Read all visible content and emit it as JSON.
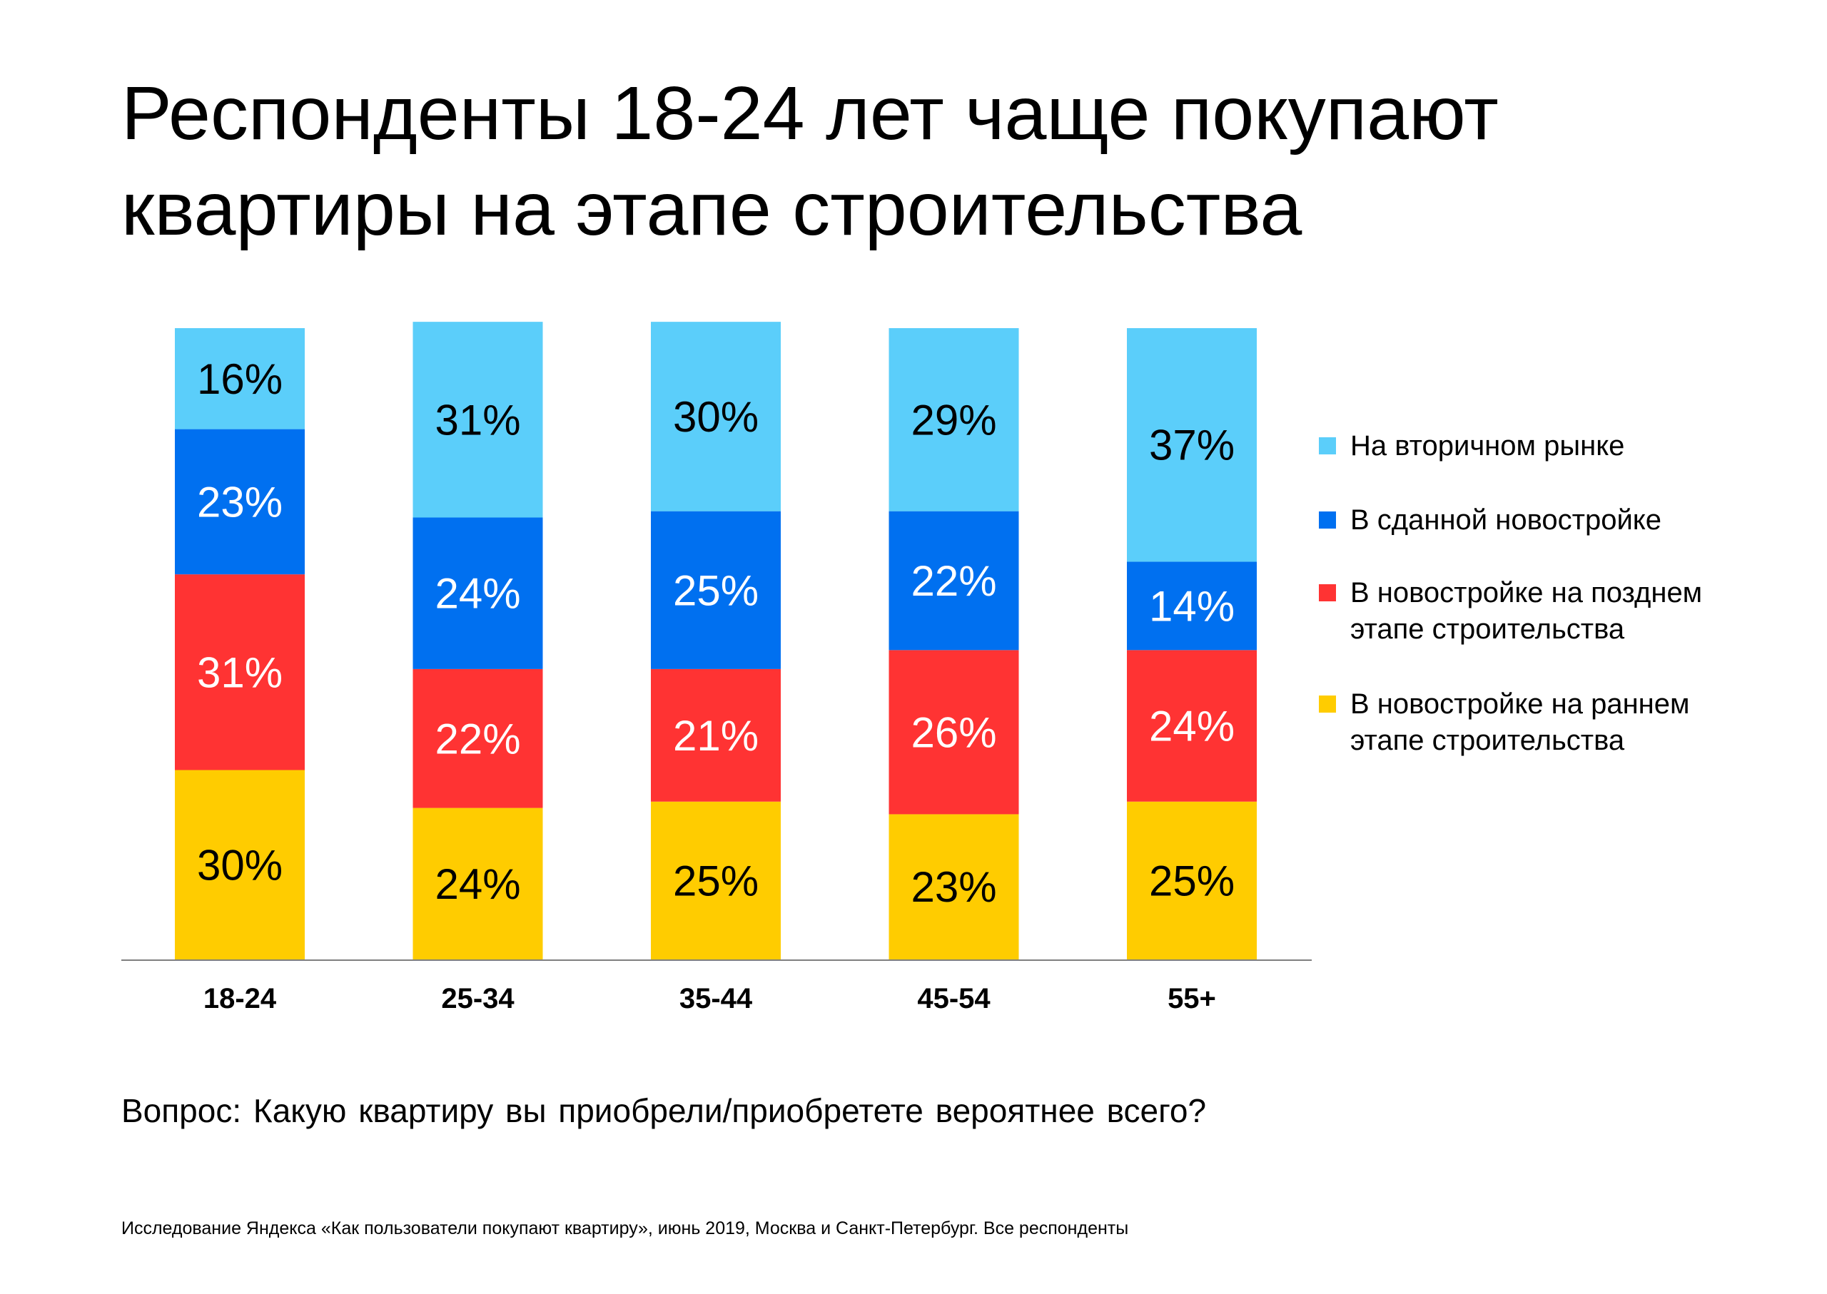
{
  "title_line1": "Респонденты 18-24 лет чаще покупают",
  "title_line2": "квартиры на этапе строительства",
  "question": "Вопрос: Какую квартиру вы приобрели/приобретете вероятнее всего?",
  "source": "Исследование Яндекса «Как пользователи покупают квартиру», июнь 2019, Москва и Санкт-Петербург. Все респонденты",
  "legend": [
    {
      "line1": "На вторичном рынке",
      "line2": "",
      "color": "#5BCEFA"
    },
    {
      "line1": "В сданной новостройке",
      "line2": "",
      "color": "#0070F0"
    },
    {
      "line1": "В новостройке на позднем",
      "line2": "этапе строительства",
      "color": "#FF3333"
    },
    {
      "line1": "В новостройке на раннем",
      "line2": "этапе строительства",
      "color": "#FFCC00"
    }
  ],
  "chart_data": {
    "type": "bar",
    "stacked": true,
    "categories": [
      "18-24",
      "25-34",
      "35-44",
      "45-54",
      "55+"
    ],
    "series": [
      {
        "name": "В новостройке на раннем этапе строительства",
        "color": "#FFCC00",
        "label_color": "#000000",
        "values": [
          30,
          24,
          25,
          23,
          25
        ]
      },
      {
        "name": "В новостройке на позднем этапе строительства",
        "color": "#FF3333",
        "label_color": "#FFFFFF",
        "values": [
          31,
          22,
          21,
          26,
          24
        ]
      },
      {
        "name": "В сданной новостройке",
        "color": "#0070F0",
        "label_color": "#FFFFFF",
        "values": [
          23,
          24,
          25,
          22,
          14
        ]
      },
      {
        "name": "На вторичном рынке",
        "color": "#5BCEFA",
        "label_color": "#000000",
        "values": [
          16,
          31,
          30,
          29,
          37
        ]
      }
    ],
    "value_suffix": "%",
    "ylim": [
      0,
      100
    ],
    "grid": false,
    "legend_position": "right"
  }
}
